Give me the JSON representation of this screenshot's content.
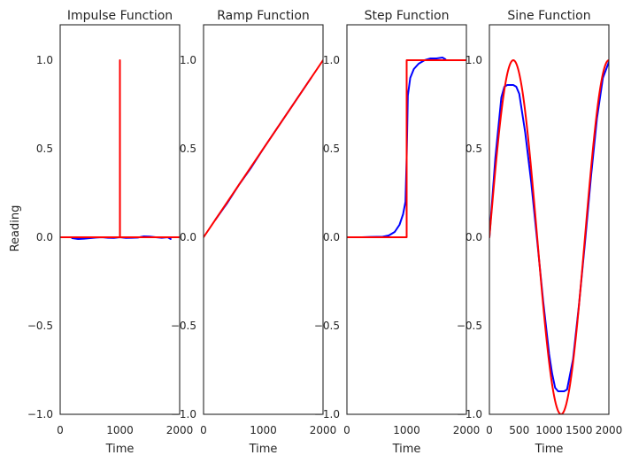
{
  "colors": {
    "measured": "#0000ff",
    "reference": "#ff0000",
    "axes": "#262626",
    "background": "#ffffff"
  },
  "chart_data": [
    {
      "type": "line",
      "title": "Impulse Function",
      "xlabel": "Time",
      "ylabel": "Reading",
      "xlim": [
        0,
        2000
      ],
      "ylim": [
        -1.0,
        1.2
      ],
      "xticks": [
        0,
        1000,
        2000
      ],
      "xtick_labels": [
        "0",
        "1000",
        "2000"
      ],
      "yticks": [
        -1.0,
        -0.5,
        0.0,
        0.5,
        1.0
      ],
      "ytick_labels": [
        "−1.0",
        "−0.5",
        "0.0",
        "0.5",
        "1.0"
      ],
      "grid": false,
      "series": [
        {
          "color": "#0000ff",
          "x": [
            200,
            300,
            400,
            500,
            600,
            700,
            800,
            900,
            1000,
            1100,
            1200,
            1300,
            1400,
            1500,
            1600,
            1700,
            1800,
            1850
          ],
          "y": [
            -0.005,
            -0.01,
            -0.008,
            -0.005,
            -0.002,
            0.0,
            -0.003,
            -0.004,
            0.0,
            -0.004,
            -0.003,
            -0.002,
            0.005,
            0.004,
            0.0,
            -0.003,
            0.0,
            -0.01
          ]
        },
        {
          "color": "#ff0000",
          "x": [
            0,
            999,
            1000,
            1000,
            1001,
            2000
          ],
          "y": [
            0.0,
            0.0,
            0.0,
            1.0,
            0.0,
            0.0
          ]
        }
      ]
    },
    {
      "type": "line",
      "title": "Ramp Function",
      "xlabel": "Time",
      "ylabel": "",
      "xlim": [
        0,
        2000
      ],
      "ylim": [
        -1.0,
        1.2
      ],
      "xticks": [
        0,
        1000,
        2000
      ],
      "xtick_labels": [
        "0",
        "1000",
        "2000"
      ],
      "yticks": [
        -1.0,
        -0.5,
        0.0,
        0.5,
        1.0
      ],
      "ytick_labels": [
        "−1.0",
        "−0.5",
        "0.0",
        "0.5",
        "1.0"
      ],
      "grid": false,
      "series": [
        {
          "color": "#0000ff",
          "x": [
            200,
            400,
            600,
            800,
            1000,
            1200,
            1400,
            1600,
            1800
          ],
          "y": [
            0.1,
            0.195,
            0.3,
            0.395,
            0.5,
            0.6,
            0.7,
            0.8,
            0.9
          ]
        },
        {
          "color": "#ff0000",
          "x": [
            0,
            2000
          ],
          "y": [
            0.0,
            1.0
          ]
        }
      ]
    },
    {
      "type": "line",
      "title": "Step Function",
      "xlabel": "Time",
      "ylabel": "",
      "xlim": [
        0,
        2000
      ],
      "ylim": [
        -1.0,
        1.2
      ],
      "xticks": [
        0,
        1000,
        2000
      ],
      "xtick_labels": [
        "0",
        "1000",
        "2000"
      ],
      "yticks": [
        -1.0,
        -0.5,
        0.0,
        0.5,
        1.0
      ],
      "ytick_labels": [
        "−1.0",
        "−0.5",
        "0.0",
        "0.5",
        "1.0"
      ],
      "grid": false,
      "series": [
        {
          "color": "#0000ff",
          "x": [
            250,
            400,
            600,
            700,
            800,
            880,
            940,
            980,
            1000,
            1020,
            1060,
            1120,
            1200,
            1300,
            1400,
            1500,
            1600,
            1650
          ],
          "y": [
            0.0,
            0.002,
            0.003,
            0.01,
            0.03,
            0.07,
            0.13,
            0.2,
            0.45,
            0.8,
            0.9,
            0.95,
            0.98,
            1.0,
            1.01,
            1.01,
            1.015,
            1.005
          ]
        },
        {
          "color": "#ff0000",
          "x": [
            0,
            1000,
            1000,
            2000
          ],
          "y": [
            0.0,
            0.0,
            1.0,
            1.0
          ]
        }
      ]
    },
    {
      "type": "line",
      "title": "Sine Function",
      "xlabel": "Time",
      "ylabel": "",
      "xlim": [
        0,
        2000
      ],
      "ylim": [
        -1.0,
        1.2
      ],
      "xticks": [
        0,
        500,
        1000,
        1500,
        2000
      ],
      "xtick_labels": [
        "0",
        "500",
        "1000",
        "1500",
        "2000"
      ],
      "yticks": [
        -1.0,
        -0.5,
        0.0,
        0.5,
        1.0
      ],
      "ytick_labels": [
        "−1.0",
        "−0.5",
        "0.0",
        "0.5",
        "1.0"
      ],
      "grid": false,
      "series": [
        {
          "color": "#0000ff",
          "x": [
            0,
            100,
            200,
            250,
            300,
            350,
            400,
            450,
            500,
            600,
            700,
            800,
            900,
            1000,
            1050,
            1100,
            1150,
            1200,
            1250,
            1300,
            1400,
            1500,
            1600,
            1700,
            1800,
            1900,
            2000
          ],
          "y": [
            0.0,
            0.45,
            0.79,
            0.85,
            0.86,
            0.86,
            0.86,
            0.85,
            0.81,
            0.59,
            0.31,
            -0.02,
            -0.36,
            -0.66,
            -0.77,
            -0.85,
            -0.87,
            -0.87,
            -0.87,
            -0.86,
            -0.69,
            -0.38,
            -0.03,
            0.34,
            0.67,
            0.9,
            0.99
          ]
        },
        {
          "color": "#ff0000",
          "func": "sin",
          "amplitude": 1.0,
          "period": 1600,
          "x_range": [
            0,
            2000
          ]
        }
      ]
    }
  ]
}
